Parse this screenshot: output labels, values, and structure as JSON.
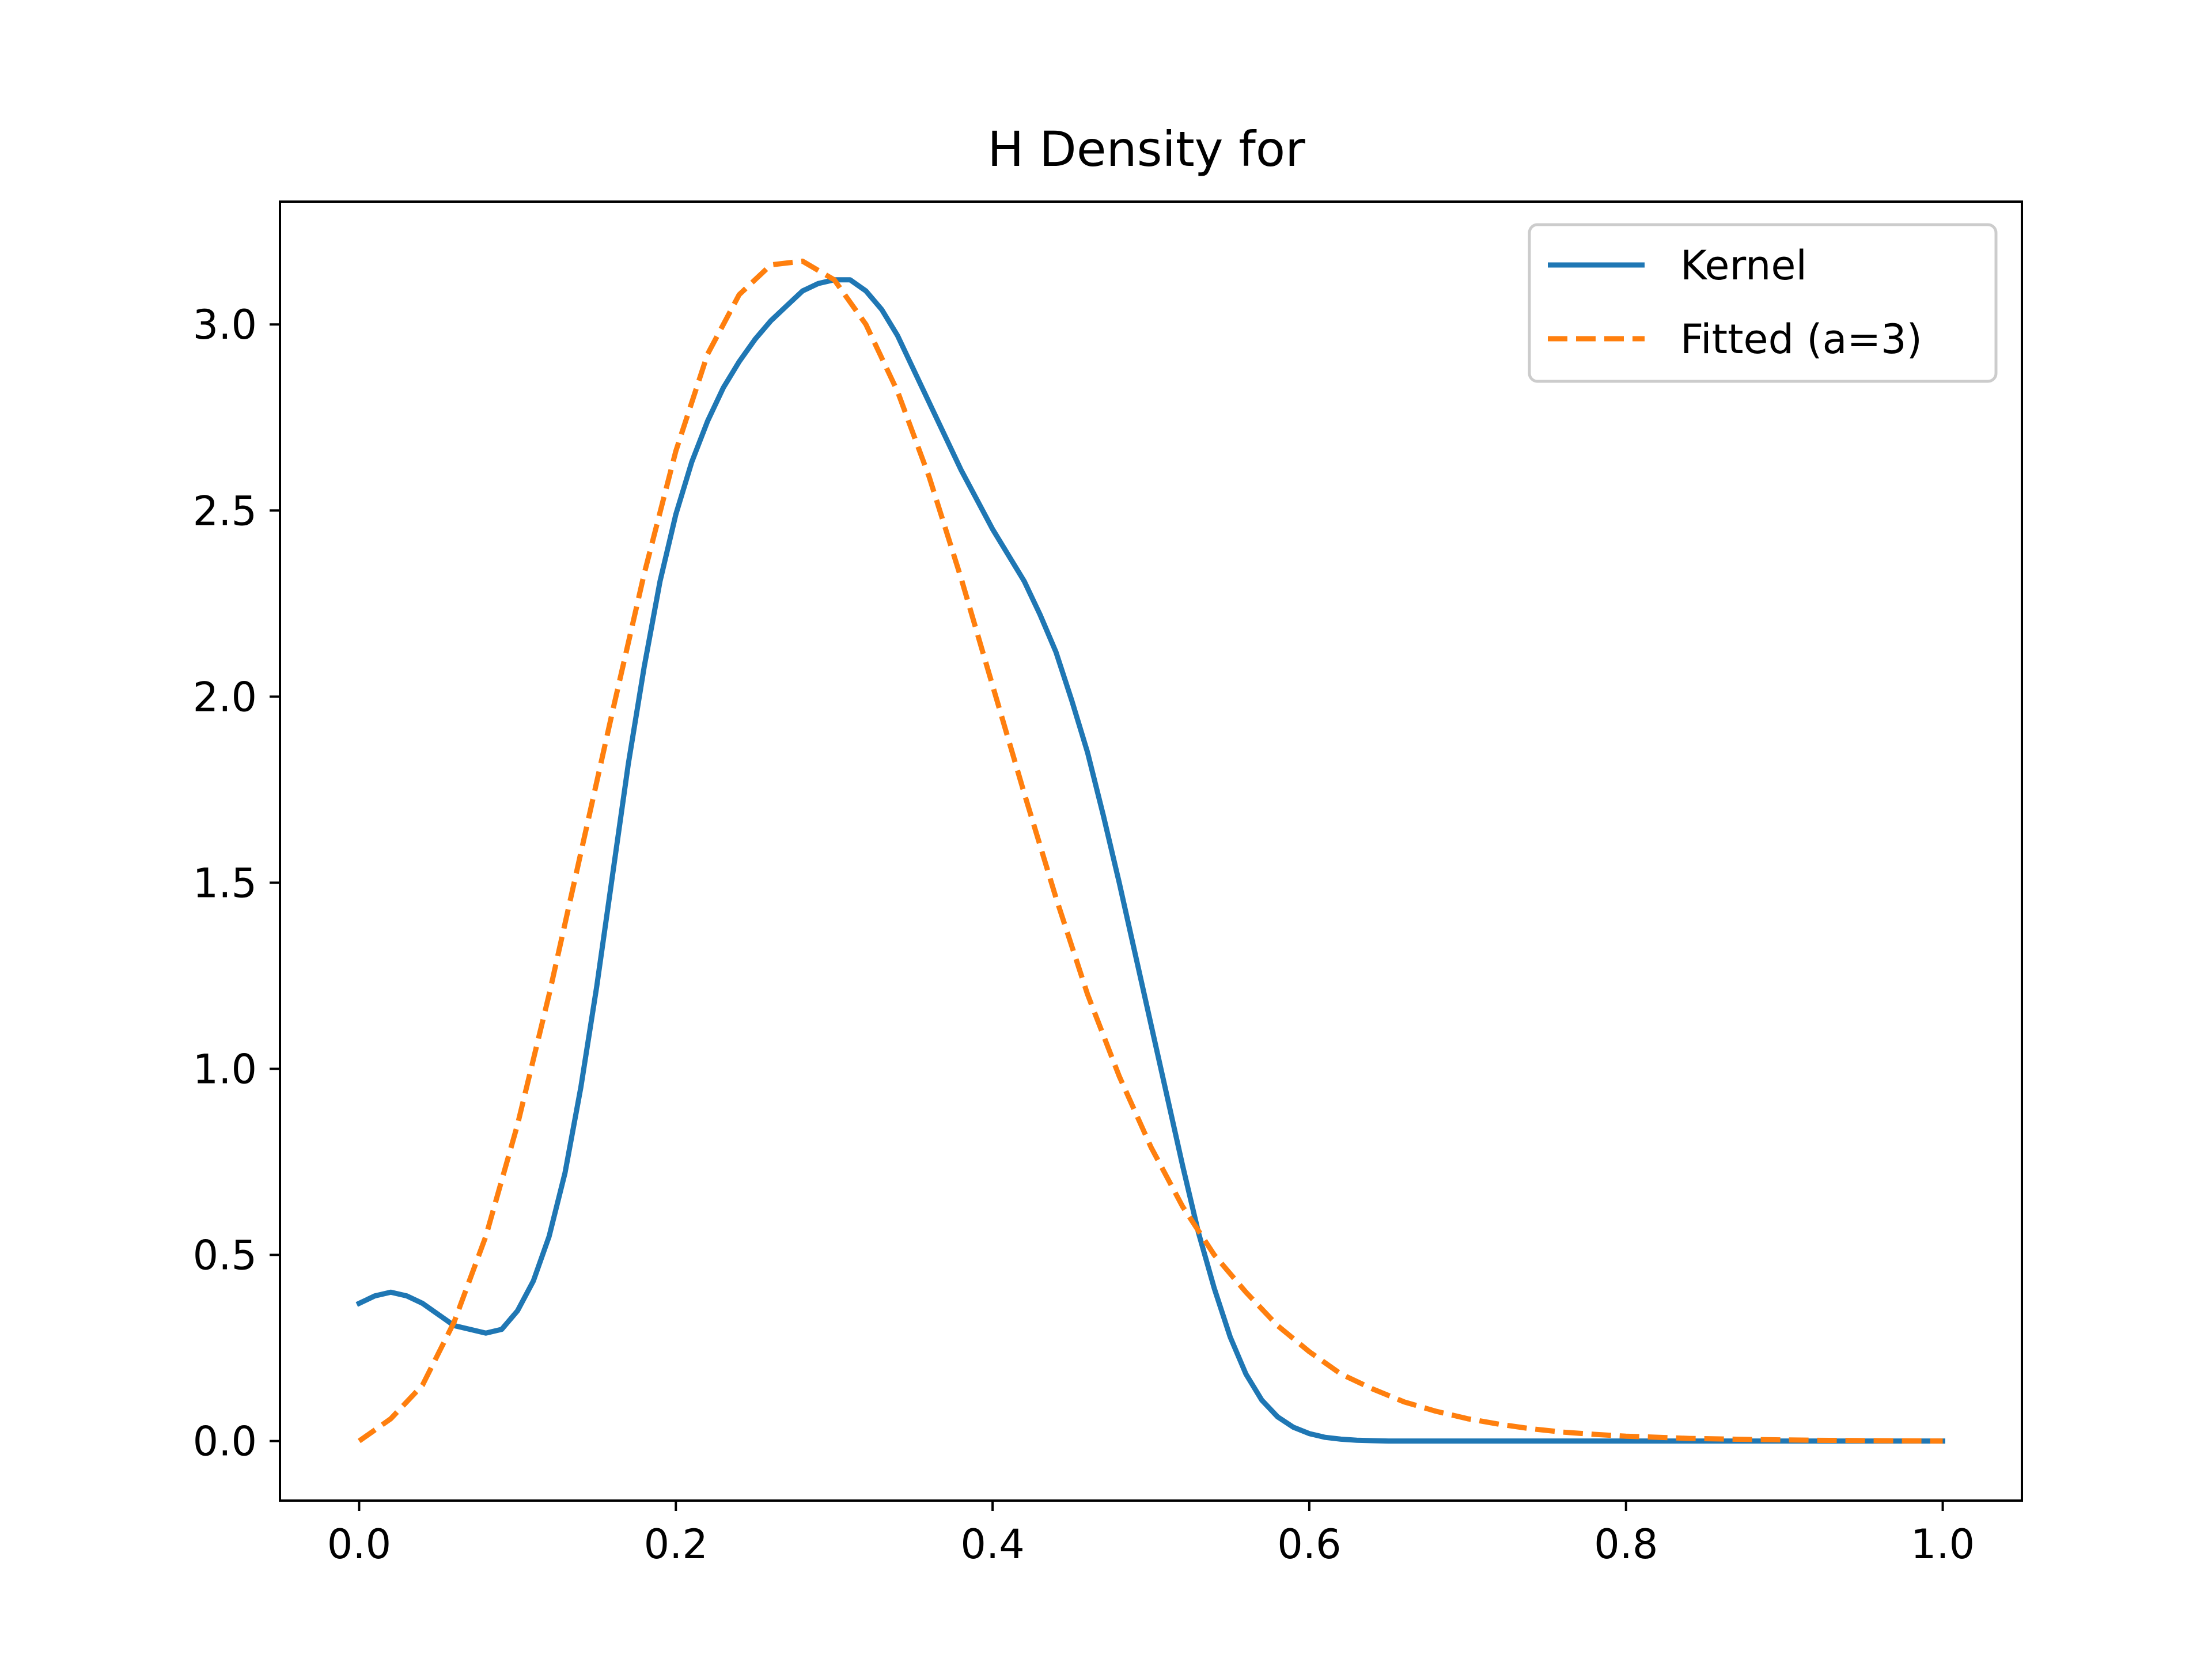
{
  "chart_data": {
    "type": "line",
    "title": "H Density for",
    "xlabel": "",
    "ylabel": "",
    "xlim": [
      -0.05,
      1.05
    ],
    "ylim": [
      -0.16,
      3.33
    ],
    "x_ticks": [
      "0.0",
      "0.2",
      "0.4",
      "0.6",
      "0.8",
      "1.0"
    ],
    "y_ticks": [
      "0.0",
      "0.5",
      "1.0",
      "1.5",
      "2.0",
      "2.5",
      "3.0"
    ],
    "grid": false,
    "legend_position": "top-right",
    "series": [
      {
        "name": "Kernel",
        "color": "#1f77b4",
        "style": "solid",
        "x": [
          0.0,
          0.01,
          0.02,
          0.03,
          0.04,
          0.05,
          0.06,
          0.07,
          0.08,
          0.09,
          0.1,
          0.11,
          0.12,
          0.13,
          0.14,
          0.15,
          0.16,
          0.17,
          0.18,
          0.19,
          0.2,
          0.21,
          0.22,
          0.23,
          0.24,
          0.25,
          0.26,
          0.27,
          0.28,
          0.29,
          0.3,
          0.31,
          0.32,
          0.33,
          0.34,
          0.35,
          0.36,
          0.37,
          0.38,
          0.39,
          0.4,
          0.41,
          0.42,
          0.43,
          0.44,
          0.45,
          0.46,
          0.47,
          0.48,
          0.49,
          0.5,
          0.51,
          0.52,
          0.53,
          0.54,
          0.55,
          0.56,
          0.57,
          0.58,
          0.59,
          0.6,
          0.61,
          0.62,
          0.63,
          0.64,
          0.65,
          0.66,
          0.67,
          0.68,
          0.7,
          0.75,
          0.8,
          0.85,
          0.9,
          0.95,
          1.0
        ],
        "y": [
          0.37,
          0.39,
          0.4,
          0.39,
          0.37,
          0.34,
          0.31,
          0.3,
          0.29,
          0.3,
          0.35,
          0.43,
          0.55,
          0.72,
          0.95,
          1.22,
          1.52,
          1.82,
          2.08,
          2.31,
          2.49,
          2.63,
          2.74,
          2.83,
          2.9,
          2.96,
          3.01,
          3.05,
          3.09,
          3.11,
          3.12,
          3.12,
          3.09,
          3.04,
          2.97,
          2.88,
          2.79,
          2.7,
          2.61,
          2.53,
          2.45,
          2.38,
          2.31,
          2.22,
          2.12,
          1.99,
          1.85,
          1.68,
          1.5,
          1.31,
          1.12,
          0.93,
          0.74,
          0.56,
          0.41,
          0.28,
          0.18,
          0.11,
          0.065,
          0.037,
          0.02,
          0.01,
          0.005,
          0.002,
          0.001,
          0.0,
          0.0,
          0.0,
          0.0,
          0.0,
          0.0,
          0.0,
          0.0,
          0.0,
          0.0,
          0.0
        ]
      },
      {
        "name": "Fitted (a=3)",
        "color": "#ff7f0e",
        "style": "dashed",
        "x": [
          0.0,
          0.02,
          0.04,
          0.06,
          0.08,
          0.1,
          0.12,
          0.14,
          0.16,
          0.18,
          0.2,
          0.22,
          0.24,
          0.26,
          0.28,
          0.3,
          0.32,
          0.34,
          0.36,
          0.38,
          0.4,
          0.42,
          0.44,
          0.46,
          0.48,
          0.5,
          0.52,
          0.54,
          0.56,
          0.58,
          0.6,
          0.62,
          0.64,
          0.66,
          0.68,
          0.7,
          0.72,
          0.74,
          0.76,
          0.78,
          0.8,
          0.84,
          0.88,
          0.92,
          0.96,
          1.0
        ],
        "y": [
          0.0,
          0.06,
          0.15,
          0.32,
          0.55,
          0.85,
          1.2,
          1.58,
          1.96,
          2.33,
          2.66,
          2.92,
          3.08,
          3.16,
          3.17,
          3.12,
          3.0,
          2.82,
          2.59,
          2.32,
          2.03,
          1.74,
          1.46,
          1.2,
          0.98,
          0.79,
          0.63,
          0.5,
          0.4,
          0.31,
          0.24,
          0.18,
          0.14,
          0.105,
          0.08,
          0.06,
          0.045,
          0.033,
          0.024,
          0.018,
          0.013,
          0.007,
          0.004,
          0.002,
          0.001,
          0.0
        ]
      }
    ]
  }
}
